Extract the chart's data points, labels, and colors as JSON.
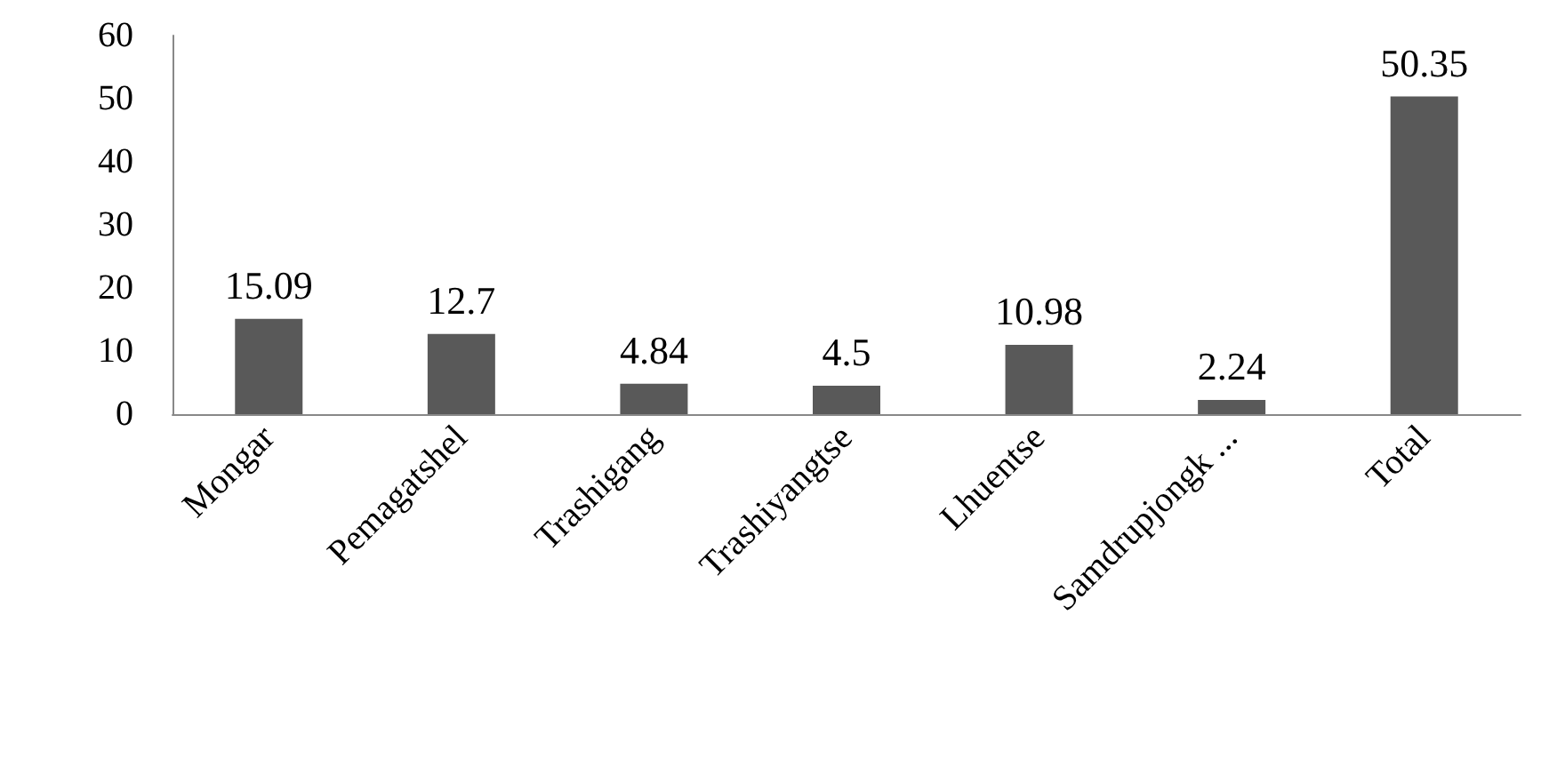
{
  "chart_data": {
    "type": "bar",
    "categories": [
      "Mongar",
      "Pemagatshel",
      "Trashigang",
      "Trashiyangtse",
      "Lhuentse",
      "Samdrupjongk ...",
      "Total"
    ],
    "values": [
      15.09,
      12.7,
      4.84,
      4.5,
      10.98,
      2.24,
      50.35
    ],
    "color": "#595959",
    "ylim": [
      0,
      60
    ],
    "yticks": [
      0,
      10,
      20,
      30,
      40,
      50,
      60
    ],
    "grid": false,
    "data_labels": true
  }
}
